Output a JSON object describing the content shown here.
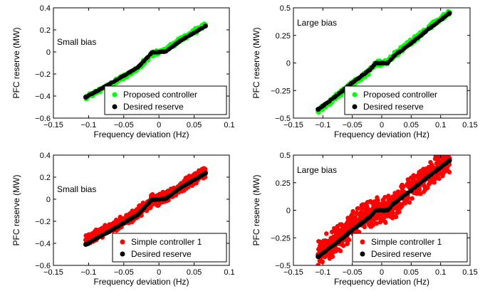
{
  "chart_data": [
    {
      "type": "scatter",
      "xlabel": "Frequency deviation (Hz)",
      "ylabel": "PFC reserve (MW)",
      "xlim": [
        -0.15,
        0.1
      ],
      "ylim": [
        -0.6,
        0.4
      ],
      "xticks": [
        -0.15,
        -0.1,
        -0.05,
        0,
        0.05,
        0.1
      ],
      "yticks": [
        -0.6,
        -0.4,
        -0.2,
        0,
        0.2,
        0.4
      ],
      "xtick_labels": [
        "−0.15",
        "−0.1",
        "−0.05",
        "0",
        "0.05",
        "0.1"
      ],
      "ytick_labels": [
        "−0.6",
        "−0.4",
        "−0.2",
        "0",
        "0.2",
        "0.4"
      ],
      "annotation": "Small bias",
      "grid": false,
      "legend_position": "bottom-right",
      "series": [
        {
          "name": "Proposed controller",
          "color": "#00ff00",
          "band": 0.025,
          "x": [
            -0.104,
            -0.09,
            -0.07,
            -0.05,
            -0.03,
            -0.01,
            0.0,
            0.01,
            0.03,
            0.05,
            0.066
          ],
          "y": [
            -0.41,
            -0.365,
            -0.3,
            -0.225,
            -0.15,
            -0.02,
            0.0,
            0.02,
            0.11,
            0.185,
            0.245
          ]
        },
        {
          "name": "Desired reserve",
          "color": "#000000",
          "band": 0.006,
          "x": [
            -0.104,
            -0.09,
            -0.07,
            -0.05,
            -0.03,
            -0.01,
            0.0,
            0.01,
            0.03,
            0.05,
            0.066
          ],
          "y": [
            -0.41,
            -0.36,
            -0.29,
            -0.215,
            -0.14,
            -0.005,
            0.0,
            0.005,
            0.1,
            0.175,
            0.235
          ]
        }
      ]
    },
    {
      "type": "scatter",
      "xlabel": "Frequency deviation (Hz)",
      "ylabel": "PFC reserve (MW)",
      "xlim": [
        -0.15,
        0.15
      ],
      "ylim": [
        -0.5,
        0.5
      ],
      "xticks": [
        -0.15,
        -0.1,
        -0.05,
        0,
        0.05,
        0.1,
        0.15
      ],
      "yticks": [
        -0.5,
        -0.25,
        0,
        0.25,
        0.5
      ],
      "xtick_labels": [
        "−0.15",
        "−0.1",
        "−0.05",
        "0",
        "0.05",
        "0.1",
        "0.15"
      ],
      "ytick_labels": [
        "−0.5",
        "−0.25",
        "0",
        "0.25",
        "0.5"
      ],
      "annotation": "Large bias",
      "grid": false,
      "legend_position": "bottom-right",
      "series": [
        {
          "name": "Proposed controller",
          "color": "#00ff00",
          "band": 0.03,
          "x": [
            -0.108,
            -0.08,
            -0.05,
            -0.02,
            -0.01,
            0.0,
            0.01,
            0.02,
            0.05,
            0.08,
            0.115
          ],
          "y": [
            -0.44,
            -0.32,
            -0.19,
            -0.07,
            -0.01,
            0.0,
            0.01,
            0.07,
            0.19,
            0.32,
            0.46
          ]
        },
        {
          "name": "Desired reserve",
          "color": "#000000",
          "band": 0.008,
          "x": [
            -0.108,
            -0.08,
            -0.05,
            -0.02,
            -0.01,
            0.0,
            0.01,
            0.02,
            0.05,
            0.08,
            0.115
          ],
          "y": [
            -0.42,
            -0.31,
            -0.18,
            -0.06,
            0.0,
            0.0,
            0.0,
            0.06,
            0.18,
            0.31,
            0.45
          ]
        }
      ]
    },
    {
      "type": "scatter",
      "xlabel": "Frequency deviation (Hz)",
      "ylabel": "PFC reserve (MW)",
      "xlim": [
        -0.15,
        0.1
      ],
      "ylim": [
        -0.6,
        0.4
      ],
      "xticks": [
        -0.15,
        -0.1,
        -0.05,
        0,
        0.05,
        0.1
      ],
      "yticks": [
        -0.6,
        -0.4,
        -0.2,
        0,
        0.2,
        0.4
      ],
      "xtick_labels": [
        "−0.15",
        "−0.1",
        "−0.05",
        "0",
        "0.05",
        "0.1"
      ],
      "ytick_labels": [
        "−0.6",
        "−0.4",
        "−0.2",
        "0",
        "0.2",
        "0.4"
      ],
      "annotation": "Small bias",
      "grid": false,
      "legend_position": "bottom-right",
      "series": [
        {
          "name": "Simple controller 1",
          "color": "#ff0000",
          "band": 0.06,
          "x": [
            -0.104,
            -0.09,
            -0.07,
            -0.05,
            -0.03,
            -0.01,
            0.0,
            0.01,
            0.03,
            0.05,
            0.066
          ],
          "y": [
            -0.37,
            -0.33,
            -0.27,
            -0.2,
            -0.12,
            -0.01,
            0.0,
            0.02,
            0.11,
            0.19,
            0.245
          ]
        },
        {
          "name": "Desired reserve",
          "color": "#000000",
          "band": 0.006,
          "x": [
            -0.104,
            -0.09,
            -0.07,
            -0.05,
            -0.03,
            -0.01,
            0.0,
            0.01,
            0.03,
            0.05,
            0.066
          ],
          "y": [
            -0.41,
            -0.36,
            -0.29,
            -0.215,
            -0.14,
            -0.005,
            0.0,
            0.005,
            0.1,
            0.175,
            0.235
          ]
        }
      ]
    },
    {
      "type": "scatter",
      "xlabel": "Frequency deviation (Hz)",
      "ylabel": "PFC reserve (MW)",
      "xlim": [
        -0.15,
        0.15
      ],
      "ylim": [
        -0.5,
        0.5
      ],
      "xticks": [
        -0.15,
        -0.1,
        -0.05,
        0,
        0.05,
        0.1,
        0.15
      ],
      "yticks": [
        -0.5,
        -0.25,
        0,
        0.25,
        0.5
      ],
      "xtick_labels": [
        "−0.15",
        "−0.1",
        "−0.05",
        "0",
        "0.05",
        "0.1",
        "0.15"
      ],
      "ytick_labels": [
        "−0.5",
        "−0.25",
        "0",
        "0.25",
        "0.5"
      ],
      "annotation": "Large bias",
      "grid": false,
      "legend_position": "bottom-right",
      "series": [
        {
          "name": "Simple controller 1",
          "color": "#ff0000",
          "band": 0.14,
          "x": [
            -0.108,
            -0.09,
            -0.07,
            -0.05,
            -0.03,
            -0.01,
            0.0,
            0.01,
            0.03,
            0.05,
            0.07,
            0.09,
            0.115
          ],
          "y": [
            -0.4,
            -0.33,
            -0.24,
            -0.14,
            -0.05,
            -0.01,
            0.0,
            0.02,
            0.1,
            0.2,
            0.28,
            0.36,
            0.47
          ]
        },
        {
          "name": "Desired reserve",
          "color": "#000000",
          "band": 0.008,
          "x": [
            -0.108,
            -0.08,
            -0.05,
            -0.02,
            -0.01,
            0.0,
            0.01,
            0.02,
            0.05,
            0.08,
            0.115
          ],
          "y": [
            -0.42,
            -0.31,
            -0.18,
            -0.06,
            0.0,
            0.0,
            0.0,
            0.06,
            0.18,
            0.31,
            0.45
          ]
        }
      ]
    }
  ]
}
